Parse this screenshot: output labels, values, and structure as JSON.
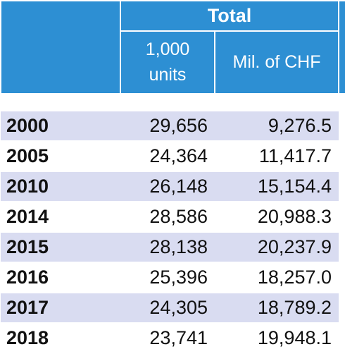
{
  "header": {
    "group_label": "Total",
    "col_units_line1": "1,000",
    "col_units_line2": "units",
    "col_value": "Mil. of CHF"
  },
  "rows": [
    {
      "year": "2000",
      "units": "29,656",
      "value": "9,276.5"
    },
    {
      "year": "2005",
      "units": "24,364",
      "value": "11,417.7"
    },
    {
      "year": "2010",
      "units": "26,148",
      "value": "15,154.4"
    },
    {
      "year": "2014",
      "units": "28,586",
      "value": "20,988.3"
    },
    {
      "year": "2015",
      "units": "28,138",
      "value": "20,237.9"
    },
    {
      "year": "2016",
      "units": "25,396",
      "value": "18,257.0"
    },
    {
      "year": "2017",
      "units": "24,305",
      "value": "18,789.2"
    },
    {
      "year": "2018",
      "units": "23,741",
      "value": "19,948.1"
    }
  ],
  "colors": {
    "header_bg": "#2d8fd3",
    "row_alt_bg": "#d9dcf1"
  }
}
